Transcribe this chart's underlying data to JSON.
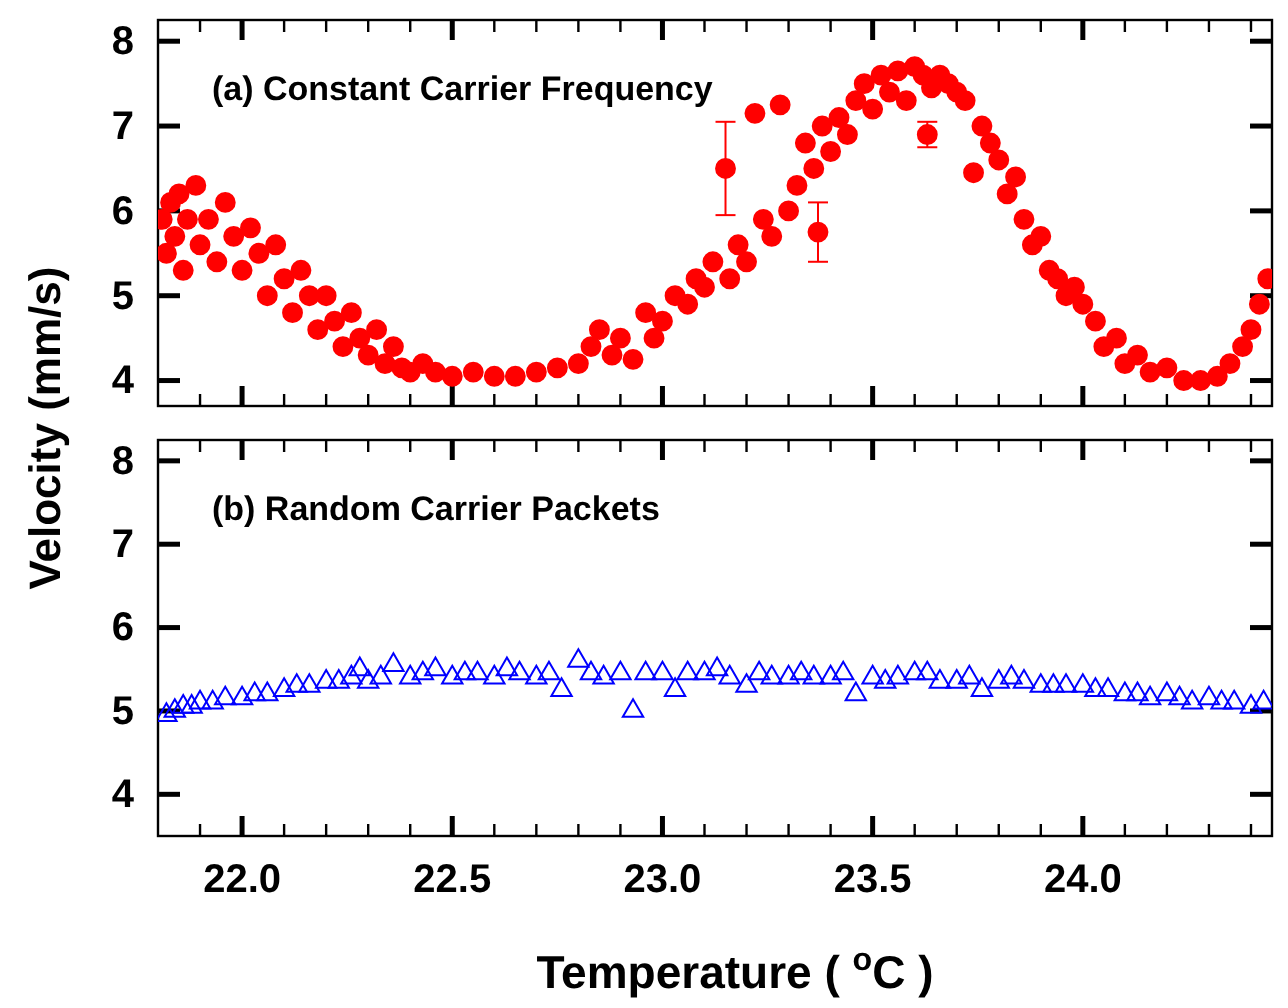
{
  "chart_data": [
    {
      "type": "scatter",
      "ylabel": "Velocity (mm/s)",
      "annotations": [
        "(a) Constant Carrier Frequency"
      ],
      "marker": "circle",
      "tick_labels": "y",
      "xlim": [
        21.8,
        24.45
      ],
      "ylim": [
        3.7,
        8.25
      ],
      "yticks": [
        4,
        5,
        6,
        7,
        8
      ],
      "xticks": [
        {
          "value": 21.9,
          "label": null
        },
        22.0,
        {
          "value": 22.1,
          "label": null
        },
        {
          "value": 22.2,
          "label": null
        },
        {
          "value": 22.3,
          "label": null
        },
        {
          "value": 22.4,
          "label": null
        },
        22.5,
        {
          "value": 22.6,
          "label": null
        },
        {
          "value": 22.7,
          "label": null
        },
        {
          "value": 22.8,
          "label": null
        },
        {
          "value": 22.9,
          "label": null
        },
        23.0,
        {
          "value": 23.1,
          "label": null
        },
        {
          "value": 23.2,
          "label": null
        },
        {
          "value": 23.3,
          "label": null
        },
        {
          "value": 23.4,
          "label": null
        },
        23.5,
        {
          "value": 23.6,
          "label": null
        },
        {
          "value": 23.7,
          "label": null
        },
        {
          "value": 23.8,
          "label": null
        },
        {
          "value": 23.9,
          "label": null
        },
        24.0,
        {
          "value": 24.1,
          "label": null
        },
        {
          "value": 24.2,
          "label": null
        },
        {
          "value": 24.3,
          "label": null
        },
        {
          "value": 24.4,
          "label": null
        }
      ],
      "series": [
        {
          "color": "#ff0000",
          "x": [
            21.81,
            21.82,
            21.83,
            21.84,
            21.85,
            21.86,
            21.87,
            21.89,
            21.9,
            21.92,
            21.94,
            21.96,
            21.98,
            22.0,
            22.02,
            22.04,
            22.06,
            22.08,
            22.1,
            22.12,
            22.14,
            22.16,
            22.18,
            22.2,
            22.22,
            22.24,
            22.26,
            22.28,
            22.3,
            22.32,
            22.34,
            22.36,
            22.38,
            22.4,
            22.43,
            22.46,
            22.5,
            22.55,
            22.6,
            22.65,
            22.7,
            22.75,
            22.8,
            22.83,
            22.85,
            22.88,
            22.9,
            22.93,
            22.96,
            22.98,
            23.0,
            23.03,
            23.06,
            23.08,
            23.1,
            23.12,
            23.16,
            23.18,
            23.2,
            23.22,
            23.24,
            23.26,
            23.28,
            23.3,
            23.32,
            23.34,
            23.36,
            23.38,
            23.4,
            23.42,
            23.44,
            23.46,
            23.48,
            23.5,
            23.52,
            23.54,
            23.56,
            23.58,
            23.6,
            23.62,
            23.64,
            23.66,
            23.68,
            23.7,
            23.72,
            23.74,
            23.76,
            23.78,
            23.8,
            23.82,
            23.84,
            23.86,
            23.88,
            23.9,
            23.92,
            23.94,
            23.96,
            23.98,
            24.0,
            24.03,
            24.05,
            24.08,
            24.1,
            24.13,
            24.16,
            24.2,
            24.24,
            24.28,
            24.32,
            24.35,
            24.38,
            24.4,
            24.42,
            24.44
          ],
          "values": [
            5.9,
            5.5,
            6.1,
            5.7,
            6.2,
            5.3,
            5.9,
            6.3,
            5.6,
            5.9,
            5.4,
            6.1,
            5.7,
            5.3,
            5.8,
            5.5,
            5.0,
            5.6,
            5.2,
            4.8,
            5.3,
            5.0,
            4.6,
            5.0,
            4.7,
            4.4,
            4.8,
            4.5,
            4.3,
            4.6,
            4.2,
            4.4,
            4.15,
            4.1,
            4.2,
            4.1,
            4.05,
            4.1,
            4.05,
            4.05,
            4.1,
            4.15,
            4.2,
            4.4,
            4.6,
            4.3,
            4.5,
            4.25,
            4.8,
            4.5,
            4.7,
            5.0,
            4.9,
            5.2,
            5.1,
            5.4,
            5.2,
            5.6,
            5.4,
            7.15,
            5.9,
            5.7,
            7.25,
            6.0,
            6.3,
            6.8,
            6.5,
            7.0,
            6.7,
            7.1,
            6.9,
            7.3,
            7.5,
            7.2,
            7.6,
            7.4,
            7.65,
            7.3,
            7.7,
            7.6,
            7.45,
            7.6,
            7.5,
            7.4,
            7.3,
            6.45,
            7.0,
            6.8,
            6.6,
            6.2,
            6.4,
            5.9,
            5.6,
            5.7,
            5.3,
            5.2,
            5.0,
            5.1,
            4.9,
            4.7,
            4.4,
            4.5,
            4.2,
            4.3,
            4.1,
            4.15,
            4.0,
            4.0,
            4.05,
            4.2,
            4.4,
            4.6,
            4.9,
            5.2
          ]
        },
        {
          "color": "#ff0000",
          "x": [
            23.15,
            23.37,
            23.63
          ],
          "values": [
            6.5,
            5.75,
            6.9
          ],
          "errors": [
            0.55,
            0.35,
            0.15
          ]
        }
      ]
    },
    {
      "type": "scatter",
      "xlabel": "Temperature ( $^{o}$C )",
      "annotations": [
        "(b) Random Carrier Packets"
      ],
      "marker": "triangle",
      "xlim": [
        21.8,
        24.45
      ],
      "ylim": [
        3.5,
        8.25
      ],
      "yticks": [
        4,
        5,
        6,
        7,
        8
      ],
      "xticks": [
        {
          "value": 21.9,
          "label": null
        },
        {
          "value": 22.0,
          "label": "22.0"
        },
        {
          "value": 22.1,
          "label": null
        },
        {
          "value": 22.2,
          "label": null
        },
        {
          "value": 22.3,
          "label": null
        },
        {
          "value": 22.4,
          "label": null
        },
        22.5,
        {
          "value": 22.6,
          "label": null
        },
        {
          "value": 22.7,
          "label": null
        },
        {
          "value": 22.8,
          "label": null
        },
        {
          "value": 22.9,
          "label": null
        },
        {
          "value": 23.0,
          "label": "23.0"
        },
        {
          "value": 23.1,
          "label": null
        },
        {
          "value": 23.2,
          "label": null
        },
        {
          "value": 23.3,
          "label": null
        },
        {
          "value": 23.4,
          "label": null
        },
        23.5,
        {
          "value": 23.6,
          "label": null
        },
        {
          "value": 23.7,
          "label": null
        },
        {
          "value": 23.8,
          "label": null
        },
        {
          "value": 23.9,
          "label": null
        },
        {
          "value": 24.0,
          "label": "24.0"
        },
        {
          "value": 24.1,
          "label": null
        },
        {
          "value": 24.2,
          "label": null
        },
        {
          "value": 24.3,
          "label": null
        },
        {
          "value": 24.4,
          "label": null
        }
      ],
      "series": [
        {
          "color": "#0000ff",
          "x": [
            21.82,
            21.84,
            21.86,
            21.88,
            21.9,
            21.93,
            21.96,
            22.0,
            22.03,
            22.06,
            22.1,
            22.13,
            22.16,
            22.2,
            22.23,
            22.26,
            22.28,
            22.3,
            22.33,
            22.36,
            22.4,
            22.43,
            22.46,
            22.5,
            22.53,
            22.56,
            22.6,
            22.63,
            22.66,
            22.7,
            22.73,
            22.76,
            22.8,
            22.83,
            22.86,
            22.9,
            22.93,
            22.96,
            23.0,
            23.03,
            23.06,
            23.1,
            23.13,
            23.16,
            23.2,
            23.23,
            23.26,
            23.3,
            23.33,
            23.36,
            23.4,
            23.43,
            23.46,
            23.5,
            23.53,
            23.56,
            23.6,
            23.63,
            23.66,
            23.7,
            23.73,
            23.76,
            23.8,
            23.83,
            23.86,
            23.9,
            23.93,
            23.96,
            24.0,
            24.03,
            24.06,
            24.1,
            24.13,
            24.16,
            24.2,
            24.23,
            24.26,
            24.3,
            24.33,
            24.36,
            24.4,
            24.43
          ],
          "values": [
            4.95,
            5.0,
            5.05,
            5.05,
            5.1,
            5.1,
            5.15,
            5.15,
            5.2,
            5.2,
            5.25,
            5.3,
            5.3,
            5.35,
            5.35,
            5.4,
            5.5,
            5.35,
            5.4,
            5.55,
            5.4,
            5.45,
            5.5,
            5.4,
            5.45,
            5.45,
            5.4,
            5.5,
            5.45,
            5.4,
            5.45,
            5.25,
            5.6,
            5.45,
            5.4,
            5.45,
            5.0,
            5.45,
            5.45,
            5.25,
            5.45,
            5.45,
            5.5,
            5.4,
            5.3,
            5.45,
            5.4,
            5.4,
            5.45,
            5.4,
            5.4,
            5.45,
            5.2,
            5.4,
            5.35,
            5.4,
            5.45,
            5.45,
            5.35,
            5.35,
            5.4,
            5.25,
            5.35,
            5.4,
            5.35,
            5.3,
            5.3,
            5.3,
            5.3,
            5.25,
            5.25,
            5.2,
            5.2,
            5.15,
            5.2,
            5.15,
            5.1,
            5.15,
            5.1,
            5.1,
            5.05,
            5.1
          ]
        }
      ]
    }
  ]
}
